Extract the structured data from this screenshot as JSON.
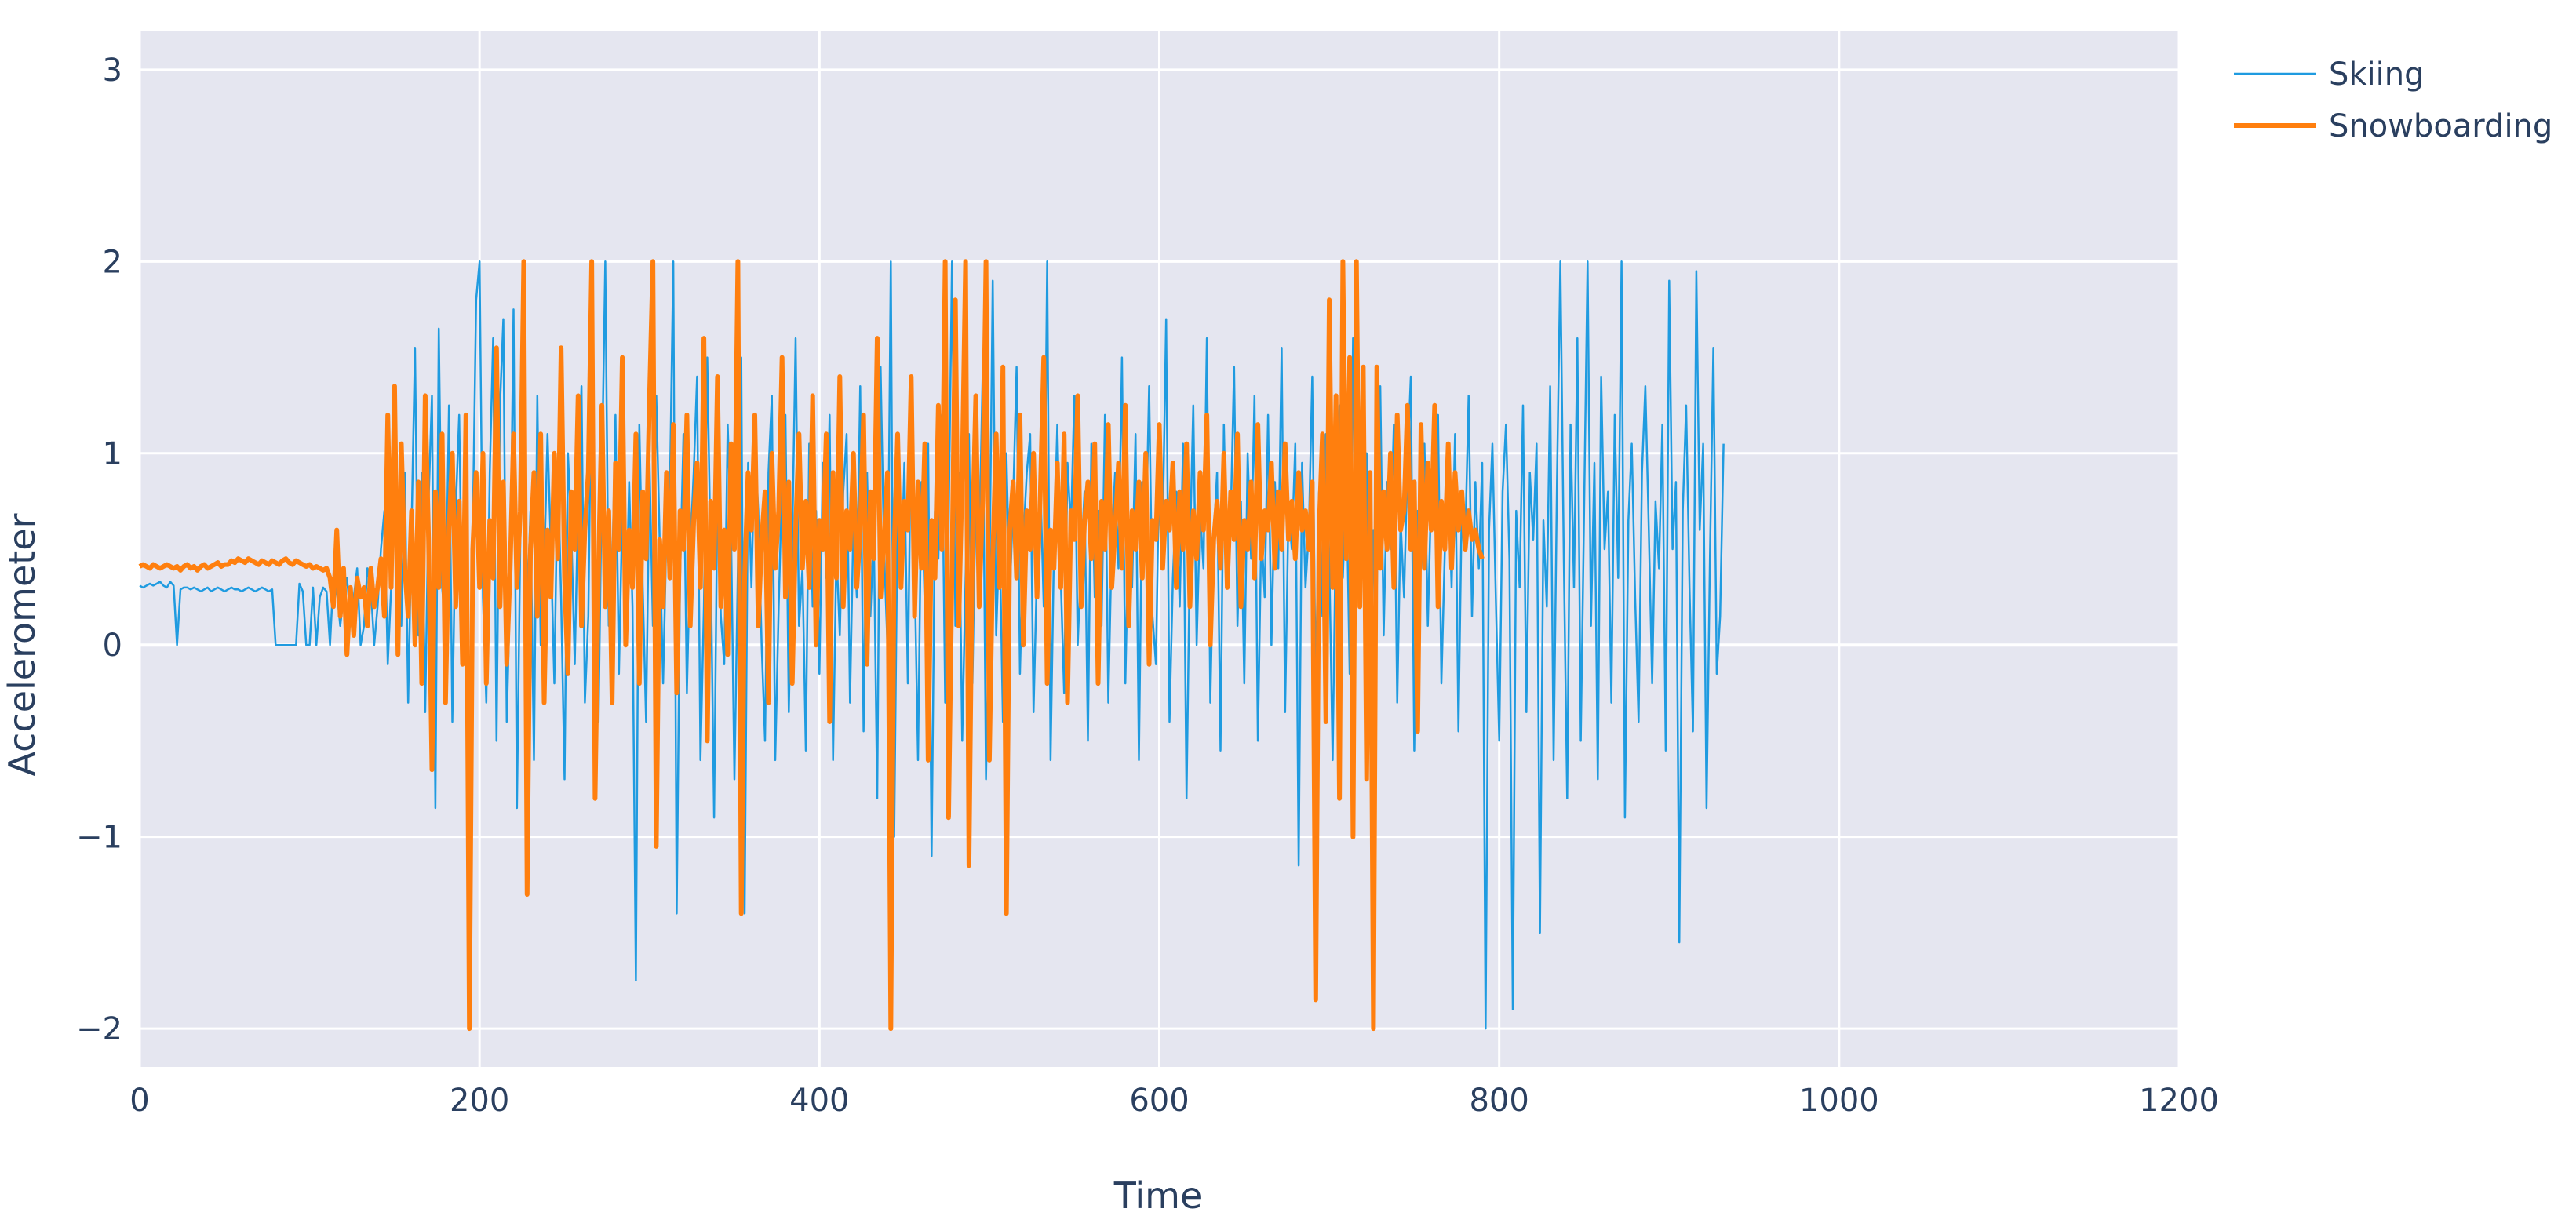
{
  "chart_data": {
    "type": "line",
    "title": "",
    "xlabel": "Time",
    "ylabel": "Accelerometer",
    "xlim": [
      0,
      1200
    ],
    "ylim": [
      -2.2,
      3.2
    ],
    "x_ticks": [
      0,
      200,
      400,
      600,
      800,
      1000,
      1200
    ],
    "y_ticks": [
      -2,
      -1,
      0,
      1,
      2,
      3
    ],
    "x_tick_labels": [
      "0",
      "200",
      "400",
      "600",
      "800",
      "1000",
      "1200"
    ],
    "y_tick_labels": [
      "−2",
      "−1",
      "0",
      "1",
      "2",
      "3"
    ],
    "grid": true,
    "legend_position": "top-right",
    "colors": {
      "plot_bg": "#e5e6f0",
      "grid": "#ffffff",
      "text": "#2a3f5f"
    },
    "series": [
      {
        "name": "Skiing",
        "color": "#1f9be0",
        "width": 2.5,
        "x_step": 2,
        "values": [
          0.31,
          0.3,
          0.31,
          0.32,
          0.31,
          0.32,
          0.33,
          0.31,
          0.3,
          0.33,
          0.31,
          0.0,
          0.29,
          0.3,
          0.3,
          0.29,
          0.3,
          0.29,
          0.28,
          0.29,
          0.3,
          0.28,
          0.29,
          0.3,
          0.29,
          0.28,
          0.29,
          0.3,
          0.29,
          0.29,
          0.28,
          0.29,
          0.3,
          0.29,
          0.28,
          0.29,
          0.3,
          0.29,
          0.28,
          0.29,
          0.0,
          0.0,
          0.0,
          0.0,
          0.0,
          0.0,
          0.0,
          0.32,
          0.28,
          0.0,
          0.0,
          0.3,
          0.0,
          0.25,
          0.3,
          0.28,
          0.0,
          0.35,
          0.29,
          0.1,
          0.25,
          0.35,
          0.15,
          0.25,
          0.4,
          0.0,
          0.1,
          0.4,
          0.3,
          0.0,
          0.2,
          0.5,
          0.7,
          -0.1,
          0.3,
          0.7,
          0.45,
          0.1,
          0.9,
          -0.3,
          0.6,
          1.55,
          0.05,
          0.9,
          -0.35,
          0.75,
          1.3,
          -0.85,
          1.65,
          0.3,
          0.1,
          1.25,
          -0.4,
          0.7,
          1.2,
          0.05,
          0.8,
          -0.95,
          0.6,
          1.8,
          2.0,
          0.25,
          -0.3,
          0.9,
          1.6,
          -0.5,
          1.25,
          1.7,
          -0.4,
          0.3,
          1.75,
          -0.85,
          0.55,
          1.1,
          0.2,
          0.7,
          -0.6,
          1.3,
          0.0,
          0.4,
          1.1,
          0.5,
          -0.2,
          0.95,
          0.25,
          -0.7,
          1.0,
          0.6,
          -0.1,
          0.75,
          1.35,
          -0.3,
          0.15,
          1.55,
          0.4,
          -0.4,
          0.9,
          2.0,
          0.1,
          0.35,
          1.2,
          -0.15,
          0.7,
          0.05,
          0.85,
          0.2,
          -1.75,
          1.15,
          0.3,
          -0.4,
          0.95,
          0.1,
          1.3,
          0.55,
          -0.2,
          0.6,
          0.8,
          2.0,
          -1.4,
          0.35,
          1.1,
          -0.25,
          0.5,
          0.9,
          1.4,
          -0.6,
          0.2,
          1.5,
          0.45,
          -0.9,
          0.85,
          0.15,
          -0.1,
          1.15,
          0.6,
          -0.7,
          0.4,
          1.5,
          -1.4,
          0.95,
          0.3,
          1.05,
          0.7,
          0.0,
          -0.5,
          0.9,
          1.3,
          -0.6,
          0.2,
          0.85,
          1.2,
          -0.35,
          0.55,
          1.6,
          0.1,
          0.4,
          -0.55,
          1.05,
          0.2,
          0.7,
          -0.15,
          0.95,
          0.35,
          1.2,
          -0.6,
          0.5,
          0.05,
          0.8,
          1.1,
          -0.3,
          0.65,
          0.25,
          1.35,
          -0.45,
          0.9,
          0.15,
          0.6,
          -0.8,
          1.45,
          0.5,
          0.0,
          2.0,
          -1.0,
          0.75,
          0.3,
          0.95,
          -0.2,
          1.25,
          0.4,
          -0.6,
          0.85,
          0.2,
          1.05,
          -1.1,
          0.7,
          0.45,
          1.2,
          -0.3,
          0.6,
          2.0,
          0.1,
          0.9,
          -0.5,
          0.35,
          1.1,
          -0.2,
          0.8,
          0.5,
          1.4,
          -0.7,
          0.3,
          1.9,
          0.05,
          0.6,
          -0.4,
          1.0,
          0.25,
          0.75,
          1.45,
          -0.15,
          0.55,
          0.9,
          1.1,
          -0.35,
          0.4,
          0.85,
          0.2,
          2.0,
          -0.6,
          0.5,
          1.15,
          0.35,
          -0.25,
          0.95,
          0.6,
          1.3,
          0.0,
          0.45,
          0.8,
          -0.5,
          1.05,
          0.25,
          0.7,
          0.1,
          1.2,
          -0.3,
          0.55,
          0.9,
          0.4,
          1.5,
          -0.2,
          0.65,
          0.3,
          1.1,
          -0.6,
          0.85,
          0.5,
          1.35,
          0.15,
          -0.1,
          0.95,
          0.6,
          1.7,
          -0.4,
          0.35,
          0.8,
          0.2,
          1.05,
          -0.8,
          0.5,
          1.25,
          0.0,
          0.7,
          0.4,
          1.6,
          -0.3,
          0.55,
          0.9,
          -0.55,
          1.15,
          0.3,
          0.65,
          1.45,
          0.1,
          0.75,
          -0.2,
          1.0,
          0.45,
          1.3,
          -0.5,
          0.6,
          0.25,
          1.2,
          0.0,
          0.85,
          0.4,
          1.55,
          -0.35,
          0.7,
          0.5,
          1.05,
          -1.15,
          0.95,
          0.3,
          0.6,
          1.4,
          -0.25,
          0.8,
          0.15,
          1.1,
          0.45,
          -0.6,
          0.7,
          1.25,
          0.35,
          0.9,
          -0.15,
          1.6,
          0.55,
          0.2,
          0.75,
          1.0,
          -0.4,
          0.6,
          0.3,
          1.35,
          0.05,
          0.85,
          0.5,
          1.15,
          -0.3,
          0.65,
          0.25,
          0.95,
          1.4,
          -0.55,
          0.7,
          0.4,
          1.05,
          0.1,
          0.8,
          0.6,
          1.2,
          -0.2,
          0.5,
          0.9,
          0.3,
          1.1,
          -0.45,
          0.75,
          0.55,
          1.3,
          0.15,
          0.85,
          0.4,
          0.95,
          -2.0,
          0.6,
          1.05,
          0.25,
          -0.5,
          0.8,
          1.15,
          0.45,
          -1.9,
          0.7,
          0.3,
          1.25,
          -0.35,
          0.9,
          0.55,
          1.05,
          -1.5,
          0.65,
          0.2,
          1.35,
          -0.6,
          0.85,
          2.0,
          0.45,
          -0.8,
          1.15,
          0.3,
          1.6,
          -0.5,
          0.75,
          2.0,
          0.1,
          0.95,
          -0.7,
          1.4,
          0.5,
          0.8,
          -0.3,
          1.2,
          0.35,
          2.0,
          -0.9,
          0.65,
          1.05,
          0.25,
          -0.4,
          0.9,
          1.35,
          0.6,
          -0.2,
          0.75,
          0.4,
          1.15,
          -0.55,
          1.9,
          0.5,
          0.85,
          -1.55,
          0.7,
          1.25,
          0.3,
          -0.45,
          1.95,
          0.6,
          1.05,
          -0.85,
          0.45,
          1.55,
          -0.15,
          0.15,
          1.05
        ]
      },
      {
        "name": "Snowboarding",
        "color": "#ff7f0e",
        "width": 6,
        "x_step": 2,
        "values": [
          0.41,
          0.42,
          0.41,
          0.4,
          0.42,
          0.41,
          0.4,
          0.41,
          0.42,
          0.41,
          0.4,
          0.41,
          0.39,
          0.41,
          0.42,
          0.4,
          0.41,
          0.39,
          0.41,
          0.42,
          0.4,
          0.41,
          0.42,
          0.43,
          0.41,
          0.42,
          0.42,
          0.44,
          0.43,
          0.45,
          0.44,
          0.43,
          0.45,
          0.44,
          0.43,
          0.42,
          0.44,
          0.43,
          0.42,
          0.44,
          0.43,
          0.42,
          0.44,
          0.45,
          0.43,
          0.42,
          0.44,
          0.43,
          0.42,
          0.41,
          0.42,
          0.4,
          0.41,
          0.4,
          0.39,
          0.4,
          0.35,
          0.2,
          0.6,
          0.15,
          0.4,
          -0.05,
          0.3,
          0.05,
          0.35,
          0.25,
          0.3,
          0.1,
          0.4,
          0.2,
          0.3,
          0.45,
          0.15,
          1.2,
          0.3,
          1.35,
          -0.05,
          1.05,
          0.4,
          0.15,
          0.7,
          0.0,
          0.85,
          -0.2,
          1.3,
          0.55,
          -0.65,
          0.8,
          0.3,
          1.1,
          -0.3,
          0.6,
          1.0,
          0.2,
          0.75,
          -0.1,
          1.2,
          -2.0,
          0.5,
          0.9,
          0.3,
          1.0,
          -0.2,
          0.65,
          0.35,
          1.55,
          0.2,
          0.85,
          -0.1,
          0.4,
          1.1,
          0.3,
          0.7,
          2.0,
          -1.3,
          0.5,
          0.9,
          0.15,
          1.1,
          -0.3,
          0.6,
          0.25,
          1.0,
          0.45,
          1.55,
          0.35,
          -0.15,
          0.8,
          0.5,
          1.3,
          0.1,
          0.6,
          0.9,
          2.0,
          -0.8,
          0.4,
          1.25,
          0.2,
          0.7,
          -0.3,
          0.95,
          0.5,
          1.5,
          0.0,
          0.6,
          0.3,
          1.1,
          -0.2,
          0.8,
          0.45,
          1.3,
          2.0,
          -1.05,
          0.55,
          0.2,
          0.9,
          0.35,
          1.15,
          -0.25,
          0.7,
          0.5,
          1.2,
          0.1,
          0.65,
          0.95,
          0.3,
          1.6,
          -0.5,
          0.75,
          0.4,
          1.4,
          0.2,
          0.6,
          -0.05,
          1.05,
          0.5,
          2.0,
          -1.4,
          0.35,
          0.9,
          0.6,
          1.2,
          0.1,
          0.55,
          0.8,
          -0.3,
          1.0,
          0.4,
          0.7,
          1.5,
          0.25,
          0.85,
          -0.2,
          0.6,
          1.1,
          0.4,
          0.75,
          0.3,
          1.3,
          0.0,
          0.65,
          0.5,
          1.1,
          -0.4,
          0.9,
          0.35,
          1.4,
          0.2,
          0.7,
          0.5,
          1.0,
          0.3,
          0.6,
          1.2,
          -0.1,
          0.8,
          0.45,
          1.6,
          0.25,
          0.55,
          0.9,
          -2.0,
          0.5,
          1.1,
          0.3,
          0.75,
          0.6,
          1.4,
          0.15,
          0.85,
          0.4,
          1.05,
          -0.6,
          0.65,
          0.35,
          1.25,
          0.5,
          2.0,
          -0.9,
          0.4,
          1.8,
          0.1,
          0.9,
          2.0,
          -1.15,
          0.55,
          1.3,
          0.2,
          0.75,
          2.0,
          -0.6,
          0.45,
          1.1,
          0.3,
          1.45,
          -1.4,
          0.6,
          0.85,
          0.35,
          1.2,
          0.0,
          0.7,
          0.5,
          1.0,
          0.25,
          0.8,
          1.5,
          -0.2,
          0.6,
          0.4,
          0.95,
          0.3,
          1.1,
          -0.3,
          0.7,
          0.55,
          1.3,
          0.2,
          0.65,
          0.85,
          0.45,
          1.05,
          -0.2,
          0.75,
          0.5,
          1.15,
          0.3,
          0.6,
          0.95,
          0.4,
          1.25,
          0.1,
          0.7,
          0.5,
          0.85,
          0.35,
          1.0,
          -0.1,
          0.65,
          0.55,
          1.15,
          0.4,
          0.75,
          0.6,
          0.95,
          0.3,
          0.8,
          0.5,
          1.05,
          0.2,
          0.7,
          0.45,
          0.9,
          0.6,
          1.2,
          0.0,
          0.55,
          0.75,
          0.4,
          1.0,
          0.3,
          0.8,
          0.55,
          1.1,
          0.2,
          0.65,
          0.5,
          0.85,
          0.35,
          1.15,
          0.45,
          0.7,
          0.6,
          0.95,
          0.4,
          0.8,
          0.5,
          1.05,
          0.55,
          0.75,
          0.45,
          0.9,
          0.6,
          0.7,
          0.5,
          0.85,
          -1.85,
          0.6,
          1.1,
          -0.4,
          1.8,
          0.3,
          1.3,
          -0.8,
          2.0,
          0.45,
          1.5,
          -1.0,
          2.0,
          0.2,
          1.45,
          -0.7,
          0.9,
          -2.0,
          1.45,
          0.4,
          0.8,
          0.5,
          1.0,
          0.3,
          1.2,
          0.6,
          0.7,
          1.25,
          0.5,
          0.85,
          -0.45,
          1.15,
          0.4,
          0.95,
          0.6,
          1.25,
          0.2,
          0.75,
          0.5,
          1.05,
          0.4,
          0.9,
          0.6,
          0.8,
          0.5,
          0.7,
          0.55,
          0.6,
          0.5,
          0.45
        ]
      }
    ]
  }
}
